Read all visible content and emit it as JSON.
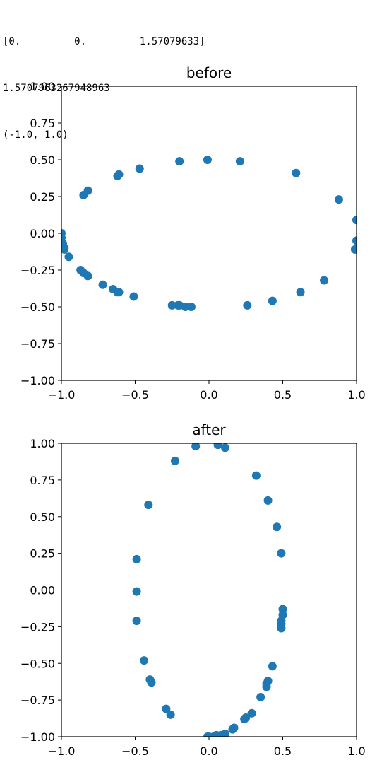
{
  "console_output": {
    "lines": [
      "[0.         0.         1.57079633]",
      "1.5707963267948963",
      "(-1.0, 1.0)"
    ]
  },
  "colors": {
    "marker": "#1f77b4",
    "axis": "#000000",
    "background": "#ffffff"
  },
  "chart_data": [
    {
      "type": "scatter",
      "title": "before",
      "xlabel": "",
      "ylabel": "",
      "xlim": [
        -1.0,
        1.0
      ],
      "ylim": [
        -1.0,
        1.0
      ],
      "grid": false,
      "xticks": [
        "−1.0",
        "−0.5",
        "0.0",
        "0.5",
        "1.0"
      ],
      "yticks": [
        "1.00",
        "0.75",
        "0.50",
        "0.25",
        "0.00",
        "−0.25",
        "−0.50",
        "−0.75",
        "−1.00"
      ],
      "series": [
        {
          "points": [
            [
              -0.01,
              0.5
            ],
            [
              0.21,
              0.49
            ],
            [
              -0.2,
              0.49
            ],
            [
              0.59,
              0.41
            ],
            [
              -0.47,
              0.44
            ],
            [
              -0.61,
              0.4
            ],
            [
              -0.62,
              0.39
            ],
            [
              -0.82,
              0.29
            ],
            [
              -0.85,
              0.26
            ],
            [
              0.88,
              0.23
            ],
            [
              1.0,
              0.09
            ],
            [
              -1.0,
              0.0
            ],
            [
              -1.0,
              -0.03
            ],
            [
              1.0,
              -0.05
            ],
            [
              -0.99,
              -0.07
            ],
            [
              -0.98,
              -0.1
            ],
            [
              -0.98,
              -0.11
            ],
            [
              0.99,
              -0.11
            ],
            [
              -0.95,
              -0.16
            ],
            [
              -0.87,
              -0.25
            ],
            [
              -0.85,
              -0.27
            ],
            [
              -0.82,
              -0.29
            ],
            [
              0.78,
              -0.32
            ],
            [
              -0.72,
              -0.35
            ],
            [
              -0.65,
              -0.38
            ],
            [
              -0.62,
              -0.4
            ],
            [
              -0.61,
              -0.4
            ],
            [
              0.62,
              -0.4
            ],
            [
              -0.51,
              -0.43
            ],
            [
              0.43,
              -0.46
            ],
            [
              -0.25,
              -0.49
            ],
            [
              -0.21,
              -0.49
            ],
            [
              -0.2,
              -0.49
            ],
            [
              0.26,
              -0.49
            ],
            [
              -0.16,
              -0.5
            ],
            [
              -0.12,
              -0.5
            ]
          ]
        }
      ]
    },
    {
      "type": "scatter",
      "title": "after",
      "xlabel": "",
      "ylabel": "",
      "xlim": [
        -1.0,
        1.0
      ],
      "ylim": [
        -1.0,
        1.0
      ],
      "grid": false,
      "xticks": [
        "−1.0",
        "−0.5",
        "0.0",
        "0.5",
        "1.0"
      ],
      "yticks": [
        "1.00",
        "0.75",
        "0.50",
        "0.25",
        "0.00",
        "−0.25",
        "−0.50",
        "−0.75",
        "−1.00"
      ],
      "series": [
        {
          "points": [
            [
              -0.09,
              0.98
            ],
            [
              0.06,
              0.99
            ],
            [
              0.11,
              0.97
            ],
            [
              -0.23,
              0.88
            ],
            [
              0.32,
              0.78
            ],
            [
              0.4,
              0.61
            ],
            [
              -0.41,
              0.58
            ],
            [
              0.46,
              0.43
            ],
            [
              0.49,
              0.25
            ],
            [
              -0.49,
              0.21
            ],
            [
              -0.49,
              -0.01
            ],
            [
              0.5,
              -0.13
            ],
            [
              0.5,
              -0.17
            ],
            [
              -0.49,
              -0.21
            ],
            [
              0.49,
              -0.21
            ],
            [
              0.49,
              -0.23
            ],
            [
              0.49,
              -0.26
            ],
            [
              -0.44,
              -0.48
            ],
            [
              0.43,
              -0.52
            ],
            [
              -0.4,
              -0.61
            ],
            [
              -0.39,
              -0.63
            ],
            [
              0.4,
              -0.62
            ],
            [
              0.39,
              -0.64
            ],
            [
              0.39,
              -0.66
            ],
            [
              0.35,
              -0.73
            ],
            [
              -0.29,
              -0.81
            ],
            [
              -0.26,
              -0.85
            ],
            [
              0.29,
              -0.84
            ],
            [
              0.25,
              -0.87
            ],
            [
              0.24,
              -0.88
            ],
            [
              0.17,
              -0.94
            ],
            [
              0.16,
              -0.95
            ],
            [
              0.11,
              -0.98
            ],
            [
              0.08,
              -0.99
            ],
            [
              0.05,
              -0.99
            ],
            [
              0.03,
              -1.0
            ],
            [
              0.0,
              -1.0
            ],
            [
              -0.01,
              -1.0
            ]
          ]
        }
      ]
    }
  ]
}
